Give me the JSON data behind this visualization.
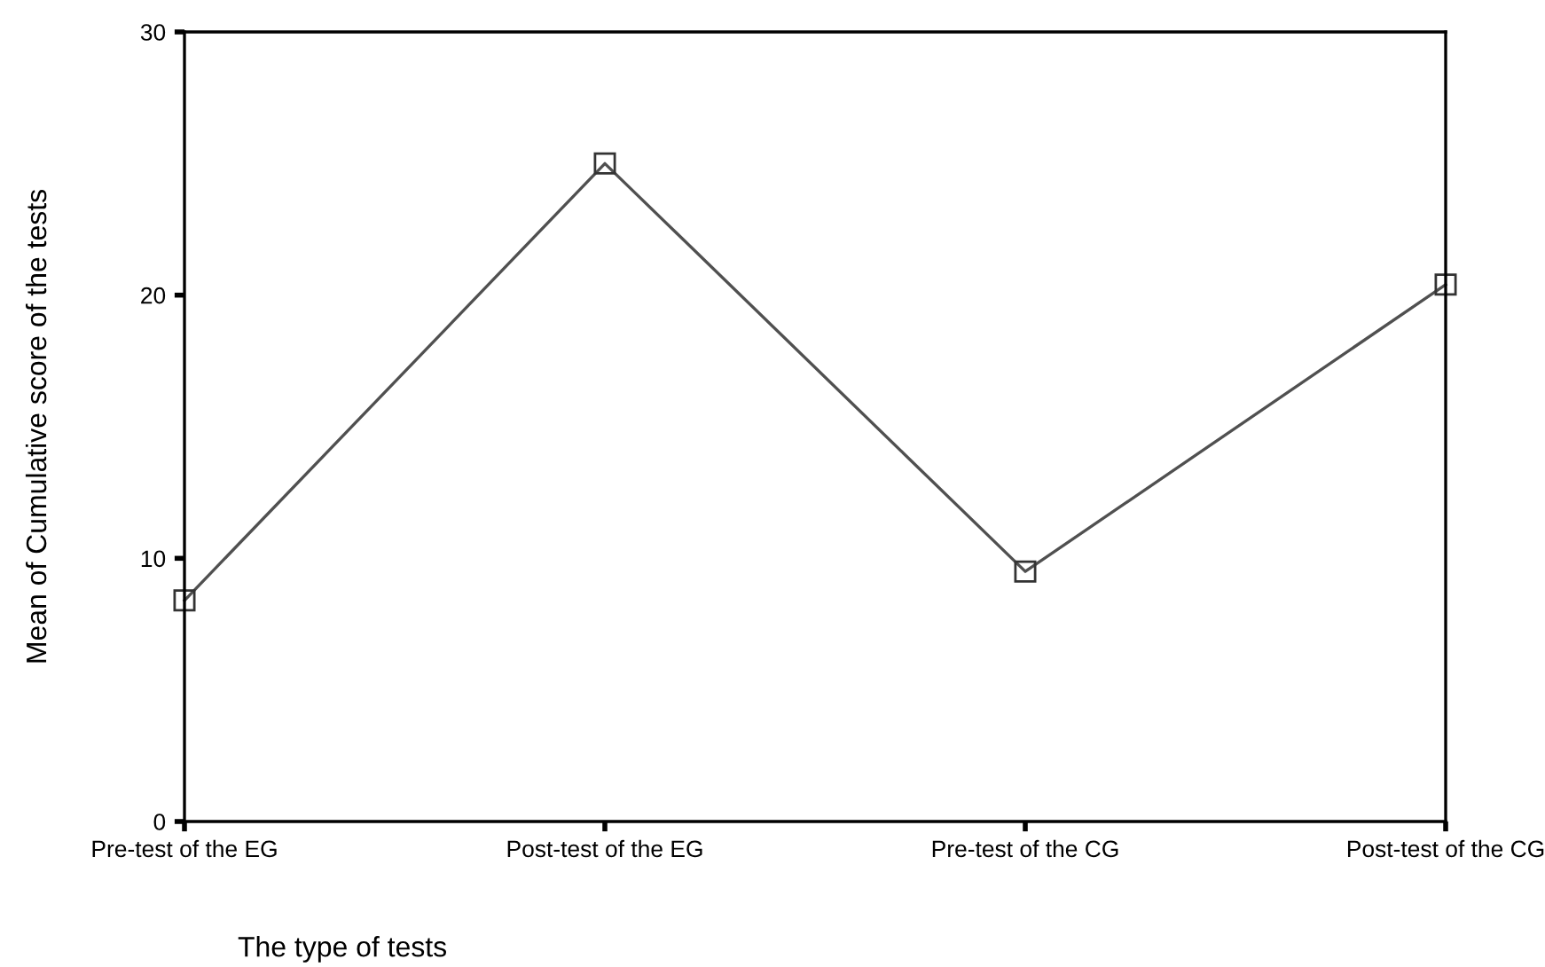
{
  "chart_data": {
    "type": "line",
    "xlabel": "The type of tests",
    "ylabel": "Mean of Cumulative score of the tests",
    "categories": [
      "Pre-test of the EG",
      "Post-test of the EG",
      "Pre-test of the CG",
      "Post-test of the CG"
    ],
    "series": [
      {
        "color": "#505050",
        "values": [
          8.4,
          25.0,
          9.5,
          20.4
        ]
      }
    ],
    "ylim": [
      0,
      30
    ],
    "yticks": [
      0,
      10,
      20,
      30
    ],
    "marker": "square",
    "line_style": "solid",
    "grid": false,
    "legend": false
  }
}
